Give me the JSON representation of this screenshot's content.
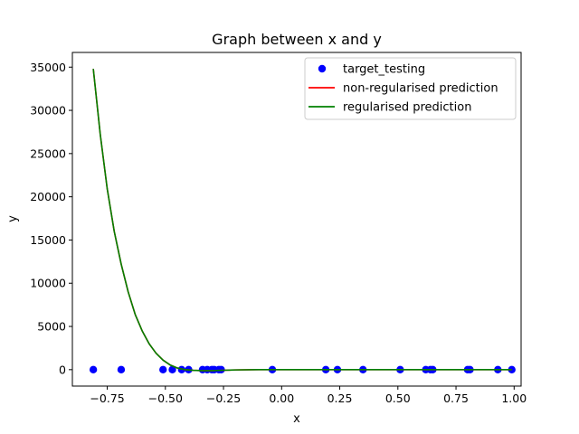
{
  "chart_data": {
    "type": "scatter",
    "title": "Graph between x and y",
    "xlabel": "x",
    "ylabel": "y",
    "xlim": [
      -0.9,
      1.03
    ],
    "ylim": [
      -1900,
      36700
    ],
    "xticks": [
      -0.75,
      -0.5,
      -0.25,
      0.0,
      0.25,
      0.5,
      0.75,
      1.0
    ],
    "xtick_labels": [
      "−0.75",
      "−0.50",
      "−0.25",
      "0.00",
      "0.25",
      "0.50",
      "0.75",
      "1.00"
    ],
    "yticks": [
      0,
      5000,
      10000,
      15000,
      20000,
      25000,
      30000,
      35000
    ],
    "ytick_labels": [
      "0",
      "5000",
      "10000",
      "15000",
      "20000",
      "25000",
      "30000",
      "35000"
    ],
    "grid": false,
    "legend_position": "top-right",
    "series": [
      {
        "name": "target_testing",
        "kind": "scatter",
        "color": "#0000ff",
        "x": [
          -0.81,
          -0.69,
          -0.51,
          -0.47,
          -0.43,
          -0.4,
          -0.34,
          -0.32,
          -0.3,
          -0.29,
          -0.27,
          -0.26,
          -0.04,
          0.19,
          0.24,
          0.35,
          0.51,
          0.62,
          0.64,
          0.65,
          0.8,
          0.81,
          0.93,
          0.99
        ],
        "y": [
          0,
          0,
          0,
          0,
          0,
          0,
          0,
          0,
          0,
          0,
          0,
          0,
          0,
          0,
          0,
          0,
          0,
          0,
          0,
          0,
          0,
          0,
          0,
          0
        ]
      },
      {
        "name": "non-regularised prediction",
        "kind": "line",
        "color": "#ff0000",
        "x": [
          -0.81,
          -0.78,
          -0.75,
          -0.72,
          -0.69,
          -0.66,
          -0.63,
          -0.6,
          -0.57,
          -0.54,
          -0.51,
          -0.48,
          -0.45,
          -0.42,
          -0.38,
          -0.34,
          -0.3,
          -0.25,
          -0.2,
          -0.1,
          0.0,
          0.25,
          0.5,
          0.75,
          0.99
        ],
        "y": [
          34800,
          27200,
          20900,
          16000,
          12200,
          9000,
          6400,
          4500,
          3000,
          1900,
          1100,
          550,
          200,
          20,
          -80,
          -120,
          -110,
          -70,
          -30,
          0,
          0,
          0,
          0,
          0,
          0
        ]
      },
      {
        "name": "regularised prediction",
        "kind": "line",
        "color": "#008000",
        "x": [
          -0.81,
          -0.78,
          -0.75,
          -0.72,
          -0.69,
          -0.66,
          -0.63,
          -0.6,
          -0.57,
          -0.54,
          -0.51,
          -0.48,
          -0.45,
          -0.42,
          -0.38,
          -0.34,
          -0.3,
          -0.25,
          -0.2,
          -0.1,
          0.0,
          0.25,
          0.5,
          0.75,
          0.99
        ],
        "y": [
          34800,
          27200,
          20900,
          16000,
          12200,
          9000,
          6400,
          4500,
          3000,
          1900,
          1100,
          550,
          200,
          20,
          -80,
          -120,
          -110,
          -70,
          -30,
          0,
          0,
          0,
          0,
          0,
          0
        ]
      }
    ]
  }
}
